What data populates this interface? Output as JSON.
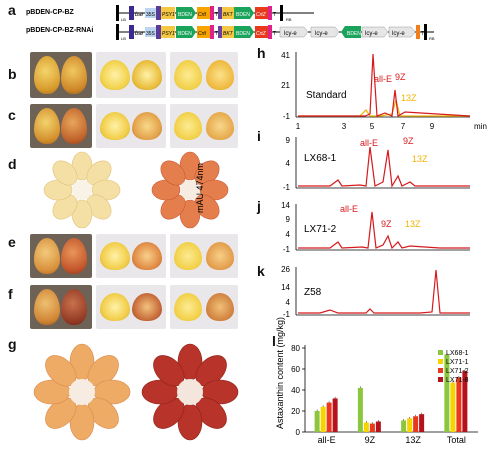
{
  "panels": {
    "a": "a",
    "b": "b",
    "c": "c",
    "d": "d",
    "e": "e",
    "f": "f",
    "g": "g",
    "h": "h",
    "i": "i",
    "j": "j",
    "k": "k",
    "l": "l"
  },
  "constructs": {
    "top": {
      "name": "pBDEN-CP-BZ",
      "elements": [
        "LB",
        "bar",
        "35S",
        "PSY1",
        "BDEN",
        "CrtI",
        "T",
        "BKT",
        "BDEN",
        "CrtZ",
        "T",
        "RB"
      ]
    },
    "bottom": {
      "name": "pBDEN-CP-BZ-RNAi",
      "elements": [
        "LB",
        "bar",
        "35S",
        "PSY1",
        "BDEN",
        "CrtI",
        "T",
        "BKT",
        "BDEN",
        "CrtZ",
        "T",
        "lcy-e",
        "lcy-e",
        "BDEN",
        "lcy-e",
        "lcy-e",
        "T",
        "RB"
      ]
    }
  },
  "hplc": {
    "y_axis_label": "mAU 474nm",
    "x_axis_label": "min",
    "x_ticks": [
      "1",
      "3",
      "5",
      "7",
      "9"
    ],
    "traces": [
      {
        "panel": "h",
        "name": "Standard",
        "y_ticks": [
          "41",
          "21",
          "-1"
        ],
        "peaks": [
          "all-E",
          "9Z",
          "13Z"
        ]
      },
      {
        "panel": "i",
        "name": "LX68-1",
        "y_ticks": [
          "9",
          "4",
          "-1"
        ],
        "peaks": [
          "all-E",
          "9Z",
          "13Z"
        ]
      },
      {
        "panel": "j",
        "name": "LX71-2",
        "y_ticks": [
          "14",
          "9",
          "4",
          "-1"
        ],
        "peaks": [
          "all-E",
          "9Z",
          "13Z"
        ]
      },
      {
        "panel": "k",
        "name": "Z58",
        "y_ticks": [
          "26",
          "14",
          "4",
          "-1"
        ],
        "peaks": []
      }
    ],
    "colors": {
      "trace": "#d7191c",
      "standard_gold": "#f0b400",
      "arrow_red": "#d7191c",
      "arrow_gold": "#f0b400"
    }
  },
  "chart_data": {
    "type": "bar",
    "ylabel": "Astaxanthin content (mg/kg)",
    "ylim": [
      0,
      80
    ],
    "yticks": [
      "0",
      "20",
      "40",
      "60",
      "80"
    ],
    "categories": [
      "all-E",
      "9Z",
      "13Z",
      "Total"
    ],
    "legend_position": "top-right",
    "series": [
      {
        "name": "LX68-1",
        "color": "#8cc63f",
        "values": [
          20,
          42,
          11,
          74
        ]
      },
      {
        "name": "LX71-1",
        "color": "#f5d400",
        "values": [
          24,
          9,
          13,
          47
        ]
      },
      {
        "name": "LX71-2",
        "color": "#e8391d",
        "values": [
          28,
          8,
          15,
          52
        ]
      },
      {
        "name": "LX71-8",
        "color": "#b5121b",
        "values": [
          32,
          10,
          17,
          58
        ]
      }
    ]
  }
}
